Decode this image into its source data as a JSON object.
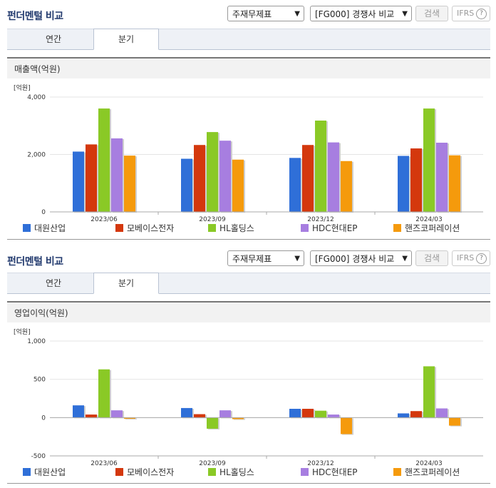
{
  "panels": [
    {
      "title": "펀더멘털 비교",
      "select1": "주재무제표",
      "select2": "[FG000] 경쟁사 비교",
      "search_label": "검색",
      "ifrs_label": "IFRS",
      "tabs": [
        "연간",
        "분기"
      ],
      "active_tab": 1,
      "section_title": "매출액(억원)"
    },
    {
      "title": "펀더멘털 비교",
      "select1": "주재무제표",
      "select2": "[FG000] 경쟁사 비교",
      "search_label": "검색",
      "ifrs_label": "IFRS",
      "tabs": [
        "연간",
        "분기"
      ],
      "active_tab": 1,
      "section_title": "영업이익(억원)"
    }
  ],
  "legend": [
    {
      "name": "대원산업",
      "color": "#2f6fd8"
    },
    {
      "name": "모베이스전자",
      "color": "#d4380d"
    },
    {
      "name": "HL홀딩스",
      "color": "#8ac926"
    },
    {
      "name": "HDC현대EP",
      "color": "#a77ee0"
    },
    {
      "name": "핸즈코퍼레이션",
      "color": "#f59a0c"
    }
  ],
  "chart_data": [
    {
      "type": "bar",
      "unit_label": "[억원]",
      "categories": [
        "2023/06",
        "2023/09",
        "2023/12",
        "2024/03"
      ],
      "ylim": [
        0,
        4000
      ],
      "yticks": [
        0,
        2000,
        4000
      ],
      "ytick_labels": [
        "0",
        "2,000",
        "4,000"
      ],
      "grid": true,
      "series": [
        {
          "name": "대원산업",
          "values": [
            2100,
            1850,
            1880,
            1950
          ]
        },
        {
          "name": "모베이스전자",
          "values": [
            2350,
            2330,
            2330,
            2210
          ]
        },
        {
          "name": "HL홀딩스",
          "values": [
            3600,
            2780,
            3180,
            3600
          ]
        },
        {
          "name": "HDC현대EP",
          "values": [
            2560,
            2480,
            2420,
            2410
          ]
        },
        {
          "name": "핸즈코퍼레이션",
          "values": [
            1960,
            1820,
            1770,
            1970
          ]
        }
      ]
    },
    {
      "type": "bar",
      "unit_label": "[억원]",
      "categories": [
        "2023/06",
        "2023/09",
        "2023/12",
        "2024/03"
      ],
      "ylim": [
        -500,
        1000
      ],
      "yticks": [
        -500,
        0,
        500,
        1000
      ],
      "ytick_labels": [
        "-500",
        "0",
        "500",
        "1,000"
      ],
      "grid": true,
      "series": [
        {
          "name": "대원산업",
          "values": [
            160,
            125,
            115,
            55
          ]
        },
        {
          "name": "모베이스전자",
          "values": [
            40,
            45,
            115,
            85
          ]
        },
        {
          "name": "HL홀딩스",
          "values": [
            630,
            -145,
            90,
            670
          ]
        },
        {
          "name": "HDC현대EP",
          "values": [
            95,
            95,
            40,
            120
          ]
        },
        {
          "name": "핸즈코퍼레이션",
          "values": [
            -15,
            -20,
            -215,
            -105
          ]
        }
      ]
    }
  ]
}
